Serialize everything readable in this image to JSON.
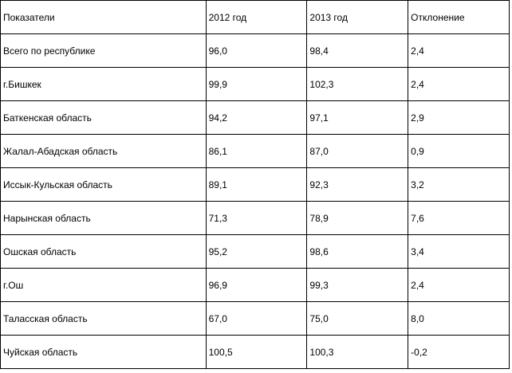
{
  "table": {
    "headers": [
      "Показатели",
      "2012 год",
      "2013 год",
      "Отклонение"
    ],
    "rows": [
      [
        "Всего по республике",
        "96,0",
        "98,4",
        "2,4"
      ],
      [
        "г.Бишкек",
        "99,9",
        "102,3",
        "2,4"
      ],
      [
        "Баткенская область",
        "94,2",
        "97,1",
        "2,9"
      ],
      [
        "Жалал-Абадская область",
        "86,1",
        "87,0",
        "0,9"
      ],
      [
        "Иссык-Кульская область",
        "89,1",
        "92,3",
        "3,2"
      ],
      [
        "Нарынская область",
        "71,3",
        "78,9",
        "7,6"
      ],
      [
        "Ошская область",
        "95,2",
        "98,6",
        "3,4"
      ],
      [
        "г.Ош",
        "96,9",
        "99,3",
        "2,4"
      ],
      [
        "Таласская область",
        "67,0",
        "75,0",
        "8,0"
      ],
      [
        "Чуйская область",
        "100,5",
        "100,3",
        "-0,2"
      ]
    ]
  }
}
